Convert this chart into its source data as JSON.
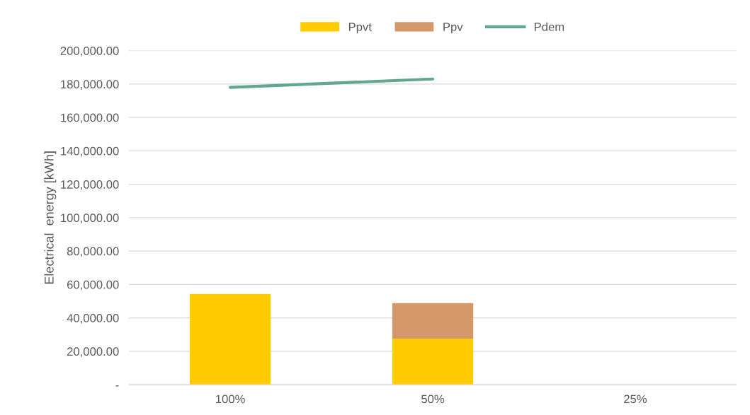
{
  "chart_data": {
    "type": "bar",
    "stacked": true,
    "ylabel": "Electrical  energy [kWh]",
    "categories": [
      "100%",
      "50%",
      "25%"
    ],
    "series": [
      {
        "name": "Ppvt",
        "color": "#ffcc00",
        "values": [
          54300,
          27600,
          null
        ]
      },
      {
        "name": "Ppv",
        "color": "#d4976a",
        "values": [
          null,
          21200,
          null
        ]
      },
      {
        "name": "Pdem",
        "type": "line",
        "color": "#62a68c",
        "values": [
          178000,
          183000,
          null
        ]
      }
    ],
    "ylim": [
      0,
      200000
    ],
    "yticks": [
      {
        "value": 0,
        "label": "-"
      },
      {
        "value": 20000,
        "label": "20,000.00"
      },
      {
        "value": 40000,
        "label": "40,000.00"
      },
      {
        "value": 60000,
        "label": "60,000.00"
      },
      {
        "value": 80000,
        "label": "80,000.00"
      },
      {
        "value": 100000,
        "label": "100,000.00"
      },
      {
        "value": 120000,
        "label": "120,000.00"
      },
      {
        "value": 140000,
        "label": "140,000.00"
      },
      {
        "value": 160000,
        "label": "160,000.00"
      },
      {
        "value": 180000,
        "label": "180,000.00"
      },
      {
        "value": 200000,
        "label": "200,000.00"
      }
    ],
    "grid": "y",
    "legend": "top"
  }
}
